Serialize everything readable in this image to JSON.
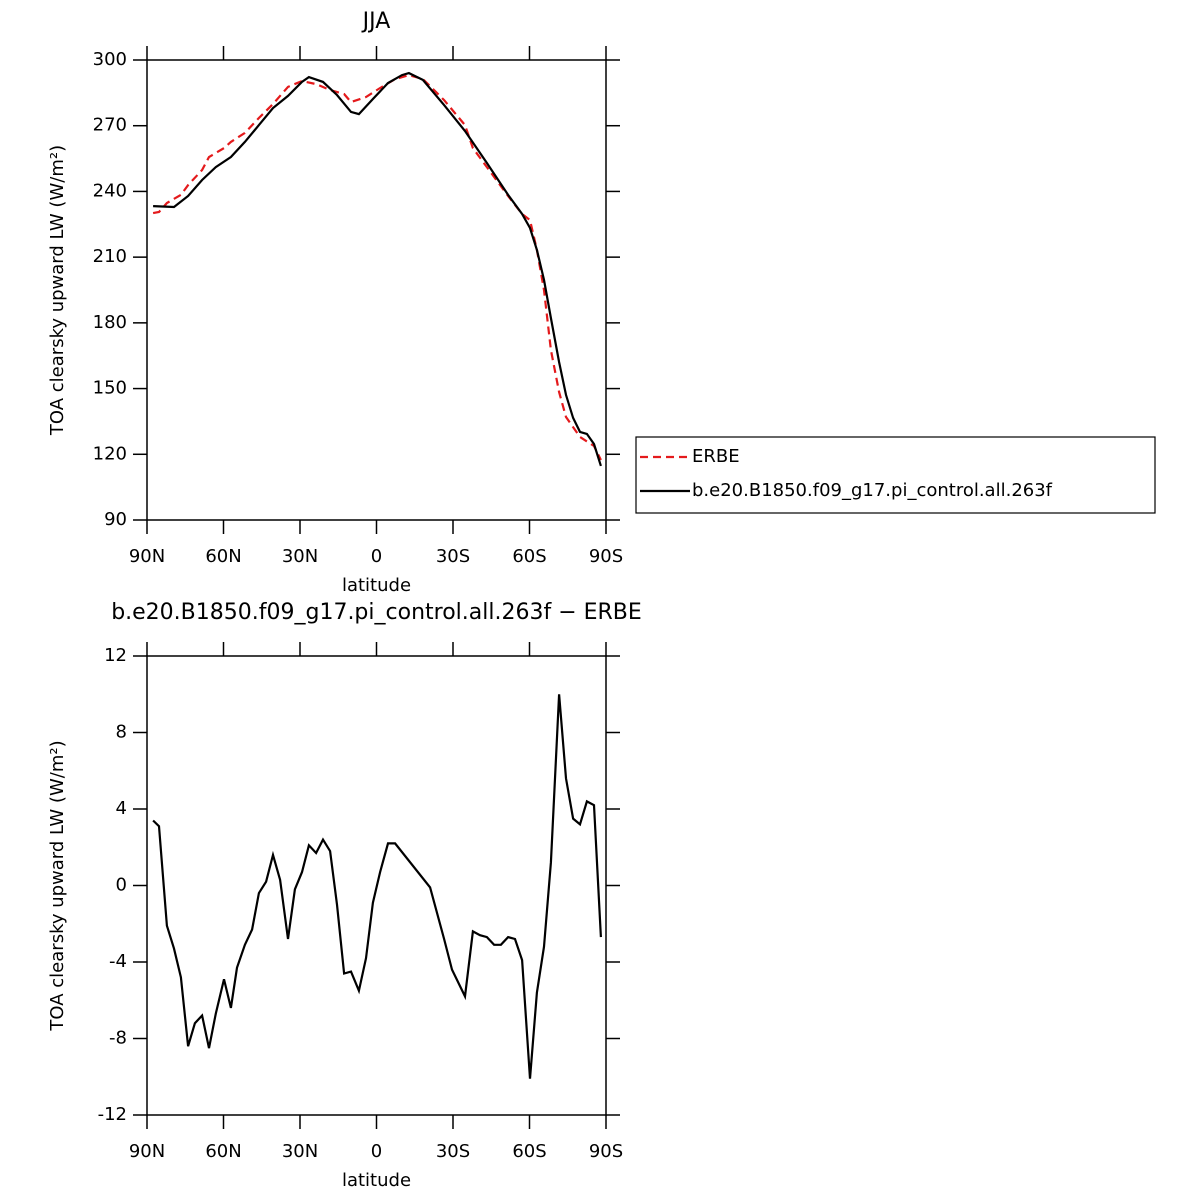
{
  "chart_data": [
    {
      "type": "line",
      "title": "JJA",
      "xlabel": "latitude",
      "ylabel": "TOA clearsky upward LW (W/m²)",
      "xlim": [
        90,
        -90
      ],
      "xticks": [
        {
          "value": 90,
          "label": "90N"
        },
        {
          "value": 60,
          "label": "60N"
        },
        {
          "value": 30,
          "label": "30N"
        },
        0,
        {
          "value": -30,
          "label": "30S"
        },
        {
          "value": -60,
          "label": "60S"
        },
        {
          "value": -90,
          "label": "90S"
        }
      ],
      "ylim": [
        90,
        300
      ],
      "yticks": [
        90,
        120,
        150,
        180,
        210,
        240,
        270,
        300
      ],
      "legend": "right",
      "series": [
        {
          "name": "ERBE",
          "color": "#e41a1c",
          "dashed": true,
          "x": [
            87.6,
            85.3,
            82.2,
            76.7,
            73.9,
            68.4,
            65.7,
            59.8,
            57.1,
            51.6,
            46.1,
            40.6,
            34.7,
            29.2,
            23.7,
            18.2,
            12.7,
            10.0,
            4.1,
            -1.4,
            -7.3,
            -12.7,
            -18.2,
            -26.5,
            -34.7,
            -37.8,
            -43.3,
            -51.6,
            -57.1,
            -60.2,
            -62.9,
            -65.7,
            -68.4,
            -71.6,
            -74.3,
            -79.8,
            -85.3,
            -88.0
          ],
          "values": [
            230.1,
            230.6,
            234.7,
            238.4,
            242.9,
            249.8,
            255.7,
            259.8,
            262.6,
            266.7,
            273.5,
            279.9,
            287.7,
            290.4,
            289.0,
            286.3,
            284.5,
            280.8,
            283.1,
            287.2,
            291.3,
            293.1,
            291.3,
            281.7,
            270.3,
            259.8,
            251.1,
            237.9,
            229.7,
            226.9,
            213.3,
            195.0,
            167.6,
            148.4,
            137.0,
            127.9,
            123.8,
            117.4
          ]
        },
        {
          "name": "b.e20.B1850.f09_g17.pi_control.all.263f",
          "color": "#000000",
          "dashed": false,
          "x": [
            87.6,
            79.4,
            73.9,
            68.4,
            63.0,
            57.1,
            51.6,
            46.1,
            40.6,
            34.7,
            29.2,
            26.5,
            21.0,
            15.5,
            10.0,
            6.9,
            1.4,
            -4.5,
            -10.0,
            -12.7,
            -18.2,
            -26.5,
            -34.7,
            -43.3,
            -51.6,
            -57.1,
            -60.2,
            -62.9,
            -65.7,
            -68.4,
            -71.6,
            -74.3,
            -77.1,
            -79.8,
            -82.5,
            -85.3,
            -88.0
          ],
          "values": [
            233.3,
            232.9,
            237.9,
            245.2,
            251.1,
            255.7,
            262.6,
            270.3,
            278.1,
            283.6,
            290.0,
            292.2,
            290.0,
            284.0,
            276.3,
            275.3,
            282.2,
            289.5,
            293.1,
            294.0,
            290.9,
            279.4,
            267.6,
            253.0,
            238.4,
            229.7,
            223.3,
            213.3,
            199.6,
            182.2,
            162.1,
            147.1,
            136.6,
            130.2,
            129.3,
            124.7,
            114.7
          ]
        }
      ]
    },
    {
      "type": "line",
      "title": "b.e20.B1850.f09_g17.pi_control.all.263f − ERBE",
      "xlabel": "latitude",
      "ylabel": "TOA clearsky upward LW (W/m²)",
      "xlim": [
        90,
        -90
      ],
      "xticks": [
        {
          "value": 90,
          "label": "90N"
        },
        {
          "value": 60,
          "label": "60N"
        },
        {
          "value": 30,
          "label": "30N"
        },
        0,
        {
          "value": -30,
          "label": "30S"
        },
        {
          "value": -60,
          "label": "60S"
        },
        {
          "value": -90,
          "label": "90S"
        }
      ],
      "ylim": [
        -12,
        12
      ],
      "yticks": [
        -12,
        -8,
        -4,
        0,
        4,
        8,
        12
      ],
      "series": [
        {
          "color": "#000000",
          "dashed": false,
          "x": [
            87.6,
            85.3,
            82.2,
            79.4,
            76.7,
            73.9,
            71.2,
            68.4,
            65.7,
            63.0,
            59.8,
            57.1,
            54.7,
            51.6,
            48.8,
            46.1,
            43.3,
            40.6,
            37.8,
            34.7,
            32.0,
            29.2,
            26.5,
            23.7,
            21.0,
            18.2,
            15.5,
            12.7,
            10.0,
            6.9,
            4.1,
            1.4,
            -1.4,
            -4.5,
            -7.3,
            -21.0,
            -26.5,
            -29.6,
            -34.7,
            -37.8,
            -40.6,
            -43.3,
            -46.1,
            -48.8,
            -51.6,
            -54.3,
            -57.1,
            -60.2,
            -62.9,
            -65.7,
            -68.4,
            -71.6,
            -74.3,
            -77.1,
            -79.8,
            -82.5,
            -85.3,
            -88.0
          ],
          "values": [
            3.4,
            3.1,
            -2.1,
            -3.3,
            -4.8,
            -8.4,
            -7.2,
            -6.8,
            -8.5,
            -6.7,
            -4.9,
            -6.4,
            -4.3,
            -3.1,
            -2.3,
            -0.4,
            0.2,
            1.6,
            0.3,
            -2.8,
            -0.2,
            0.7,
            2.1,
            1.7,
            2.4,
            1.8,
            -1.0,
            -4.6,
            -4.5,
            -5.5,
            -3.8,
            -0.9,
            0.7,
            2.2,
            2.2,
            -0.1,
            -2.8,
            -4.4,
            -5.8,
            -2.4,
            -2.6,
            -2.7,
            -3.1,
            -3.1,
            -2.7,
            -2.8,
            -3.9,
            -10.1,
            -5.6,
            -3.2,
            1.2,
            10.0,
            5.6,
            3.5,
            3.2,
            4.4,
            4.2,
            -2.7
          ]
        }
      ]
    }
  ]
}
